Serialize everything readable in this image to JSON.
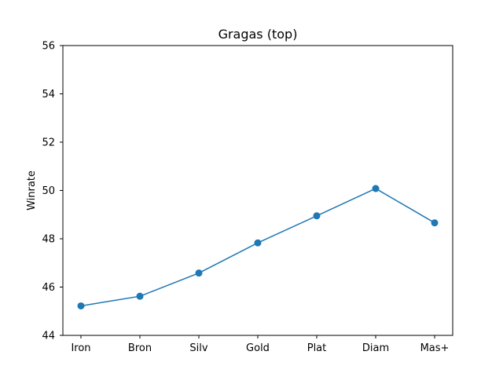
{
  "chart_data": {
    "type": "line",
    "title": "Gragas (top)",
    "xlabel": "",
    "ylabel": "Winrate",
    "categories": [
      "Iron",
      "Bron",
      "Silv",
      "Gold",
      "Plat",
      "Diam",
      "Mas+"
    ],
    "series": [
      {
        "values": [
          45.22,
          45.62,
          46.58,
          47.83,
          48.95,
          50.08,
          48.66
        ],
        "color": "#1f77b4",
        "marker": "circle"
      }
    ],
    "ylim": [
      44,
      56
    ],
    "yticks": [
      44,
      46,
      48,
      50,
      52,
      54,
      56
    ],
    "grid": false,
    "legend": "none"
  }
}
